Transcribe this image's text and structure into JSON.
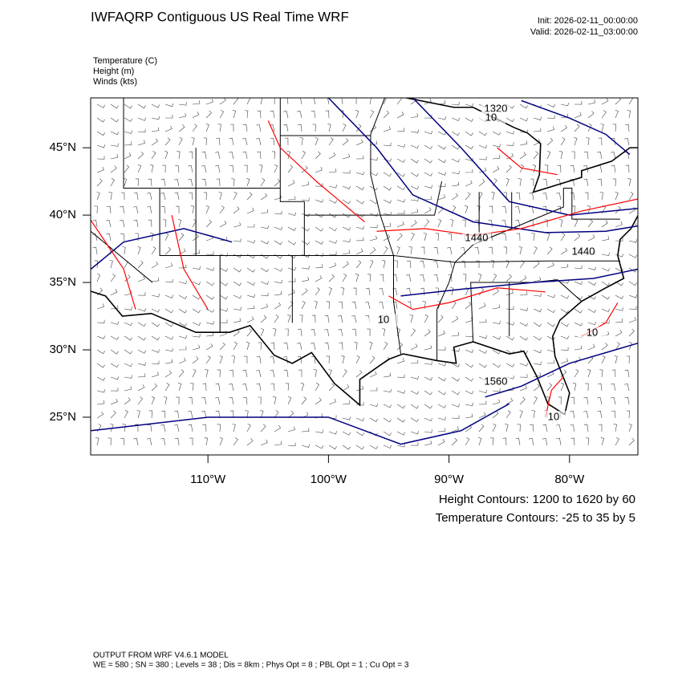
{
  "header": {
    "title": "IWFAQRP Contiguous US Real Time WRF",
    "init": "Init: 2026-02-11_00:00:00",
    "valid": "Valid: 2026-02-11_03:00:00"
  },
  "fields": [
    "Temperature   (C)",
    "Height   (m)",
    "Winds   (kts)"
  ],
  "map": {
    "lonlim": [
      -119.73,
      -74.33
    ],
    "latlim": [
      22.2,
      48.7
    ],
    "lon_ticks": [
      {
        "value": -110,
        "label": "110°W"
      },
      {
        "value": -100,
        "label": "100°W"
      },
      {
        "value": -90,
        "label": "90°W"
      },
      {
        "value": -80,
        "label": "80°W"
      }
    ],
    "lat_ticks": [
      {
        "value": 25,
        "label": "25°N"
      },
      {
        "value": 30,
        "label": "30°N"
      },
      {
        "value": 35,
        "label": "35°N"
      },
      {
        "value": 40,
        "label": "40°N"
      },
      {
        "value": 45,
        "label": "45°N"
      }
    ],
    "height_color": "#000080",
    "temperature_color": "#ff0000",
    "contour_labels": [
      {
        "text": 1320,
        "kind": "height"
      },
      {
        "text": 10,
        "kind": "temperature"
      },
      {
        "text": 1440,
        "kind": "height"
      },
      {
        "text": 1440,
        "kind": "height"
      },
      {
        "text": 10,
        "kind": "temperature"
      },
      {
        "text": 10,
        "kind": "temperature"
      },
      {
        "text": 1560,
        "kind": "height"
      },
      {
        "text": 10,
        "kind": "temperature"
      }
    ]
  },
  "legend": {
    "height": "Height Contours: 1200 to 1620 by 60",
    "temperature": "Temperature Contours: -25 to 35 by 5"
  },
  "footer": [
    "OUTPUT FROM WRF V4.6.1 MODEL",
    "WE = 580 ; SN = 380 ; Levels = 38 ; Dis = 8km ; Phys Opt = 8 ; PBL Opt = 1 ; Cu Opt = 3"
  ]
}
